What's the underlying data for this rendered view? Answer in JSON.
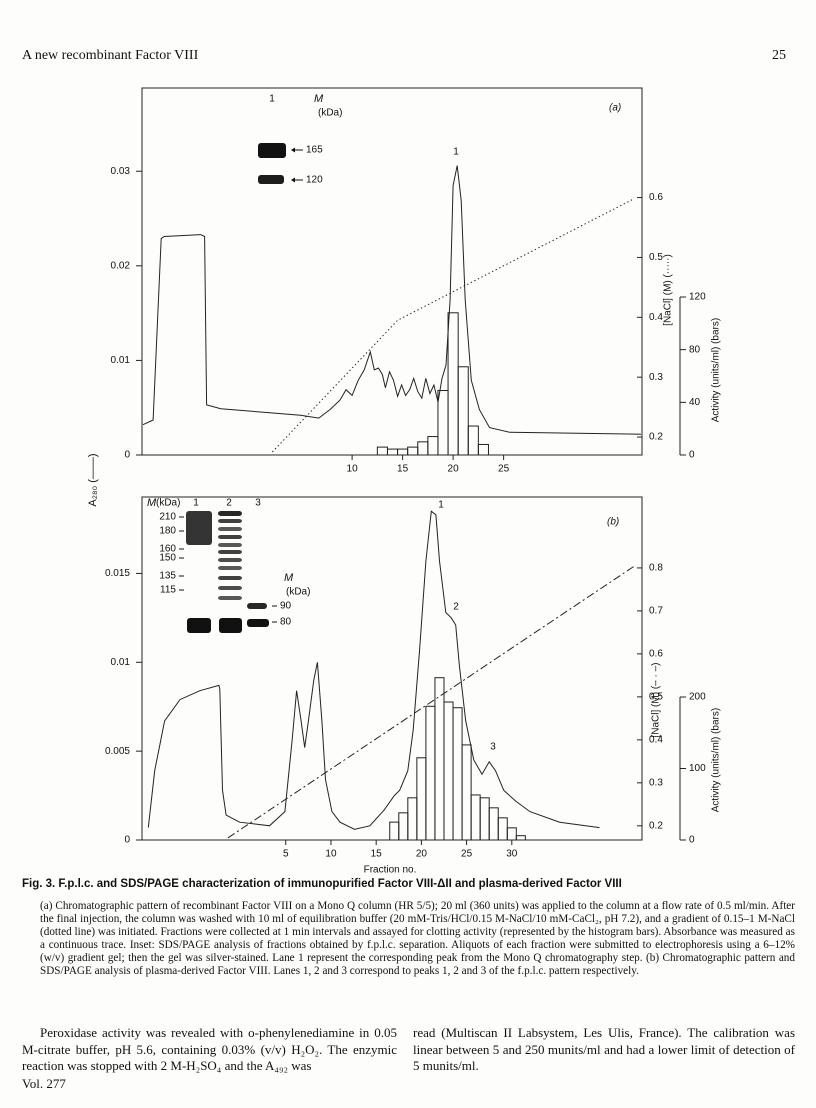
{
  "header": {
    "running_title": "A new recombinant Factor VIII",
    "page_number": "25"
  },
  "figure": {
    "y_label": "A₂₈₀ (——)"
  },
  "chart_data": [
    {
      "type": "line",
      "panel_label": "(a)",
      "xlim": [
        -10.8,
        38.7
      ],
      "xticks": [
        10,
        15,
        20,
        25
      ],
      "ylim": [
        0,
        0.0388
      ],
      "yticks": [
        0,
        0.01,
        0.02,
        0.03
      ],
      "y2lim": [
        0.17,
        0.783
      ],
      "y2ticks": [
        0.2,
        0.3,
        0.4,
        0.5,
        0.6
      ],
      "y2_label": "[NaCl] (M) (·····)",
      "y3lim": [
        0,
        120
      ],
      "y3ticks": [
        0,
        40,
        80,
        120
      ],
      "y3_label": "Activity (units/ml) (bars)",
      "series": [
        {
          "color": "#222222",
          "style": "solid",
          "x": [
            -10.7,
            -9.7,
            -8.9,
            -8.6,
            -5.0,
            -4.6,
            -4.4,
            -3.0,
            4.9,
            6.7,
            7.8,
            8.8,
            9.4,
            10,
            10.6,
            11.2,
            11.8,
            12.2,
            12.6,
            13.0,
            13.3,
            13.7,
            14.1,
            14.5,
            14.9,
            15.3,
            15.7,
            16.1,
            16.5,
            16.9,
            17.3,
            17.7,
            18.1,
            18.5,
            18.9,
            19.3,
            19.7,
            20.0,
            20.4,
            20.8,
            21.2,
            21.8,
            22.6,
            23.6,
            25.6,
            38.6
          ],
          "values": [
            0.0032,
            0.0037,
            0.0229,
            0.0231,
            0.0233,
            0.0231,
            0.0053,
            0.0049,
            0.0042,
            0.0039,
            0.0048,
            0.0058,
            0.0069,
            0.0063,
            0.0079,
            0.009,
            0.0109,
            0.009,
            0.0092,
            0.0085,
            0.0071,
            0.0088,
            0.0079,
            0.0062,
            0.0074,
            0.0063,
            0.0069,
            0.0081,
            0.0067,
            0.006,
            0.0081,
            0.0065,
            0.0074,
            0.0056,
            0.0081,
            0.0095,
            0.0164,
            0.0285,
            0.0306,
            0.0269,
            0.0164,
            0.0079,
            0.0048,
            0.0029,
            0.0024,
            0.0022
          ]
        },
        {
          "color": "#222222",
          "style": "dotted",
          "axis": "y2",
          "x": [
            2.1,
            14.5,
            37.9
          ],
          "values": [
            0.175,
            0.395,
            0.598
          ]
        },
        {
          "type": "bar",
          "color": "#222222",
          "axis": "y3",
          "x": [
            13,
            14,
            15,
            16,
            17,
            18,
            19,
            20,
            21,
            22,
            23
          ],
          "values": [
            6,
            4.5,
            4.5,
            6,
            10,
            14,
            49,
            108,
            67,
            22,
            8
          ]
        }
      ],
      "annotations": [
        "1"
      ],
      "inset": {
        "lane_labels": [
          "1"
        ],
        "mass_label": "M",
        "unit_label": "(kDa)",
        "markers": [
          "165",
          "120"
        ]
      }
    },
    {
      "type": "line",
      "panel_label": "(b)",
      "x_label": "Fraction no.",
      "xlim": [
        -10.9,
        44.4
      ],
      "xticks": [
        5,
        10,
        15,
        20,
        25,
        30
      ],
      "ylim": [
        0,
        0.0193
      ],
      "yticks": [
        0,
        0.005,
        0.01,
        0.015
      ],
      "y2lim": [
        0.167,
        0.965
      ],
      "y2ticks": [
        0.2,
        0.3,
        0.4,
        0.5,
        0.6,
        0.7,
        0.8
      ],
      "y2_label": "[NaCl] (M) (– · –)",
      "y3lim": [
        0,
        200
      ],
      "y3ticks": [
        0,
        100,
        200
      ],
      "y3_label": "Activity (units/ml) (bars)",
      "series": [
        {
          "color": "#222222",
          "style": "solid",
          "x": [
            -10.2,
            -9.5,
            -8.4,
            -6.7,
            -4.5,
            -2.4,
            -2.3,
            -2.0,
            -1.6,
            -0.1,
            3.2,
            4.9,
            5.7,
            6.2,
            6.7,
            7.1,
            7.5,
            8.1,
            8.5,
            9.0,
            9.4,
            10.1,
            11.0,
            12.6,
            14.3,
            15.9,
            17.0,
            17.6,
            18.5,
            19.1,
            19.8,
            20.5,
            21.1,
            21.6,
            22.0,
            22.7,
            23.3,
            23.8,
            24.2,
            24.9,
            25.8,
            26.7,
            27.5,
            28.2,
            29.1,
            30.4,
            32.0,
            35.3,
            39.7
          ],
          "values": [
            0.0007,
            0.0039,
            0.0067,
            0.0079,
            0.0084,
            0.0087,
            0.0085,
            0.0028,
            0.0014,
            0.001,
            0.0008,
            0.0016,
            0.0056,
            0.0084,
            0.0067,
            0.0052,
            0.0067,
            0.009,
            0.01,
            0.0067,
            0.0034,
            0.0016,
            0.001,
            0.0006,
            0.0008,
            0.0017,
            0.0025,
            0.0028,
            0.0039,
            0.0062,
            0.0107,
            0.0157,
            0.0185,
            0.0183,
            0.0157,
            0.0128,
            0.0125,
            0.0121,
            0.0098,
            0.0067,
            0.0045,
            0.0037,
            0.0044,
            0.0039,
            0.0028,
            0.0022,
            0.0016,
            0.001,
            0.0007
          ]
        },
        {
          "color": "#222222",
          "style": "dashdot",
          "axis": "y2",
          "x": [
            -1.4,
            43.6
          ],
          "values": [
            0.172,
            0.805
          ]
        },
        {
          "type": "bar",
          "color": "#222222",
          "axis": "y3",
          "x": [
            17,
            18,
            19,
            20,
            21,
            22,
            23,
            24,
            25,
            26,
            27,
            28,
            29,
            30,
            31
          ],
          "values": [
            25,
            38,
            59,
            115,
            187,
            227,
            193,
            185,
            133,
            63,
            59,
            45,
            31,
            17,
            6
          ]
        }
      ],
      "annotations": [
        "1",
        "2",
        "3"
      ],
      "inset": {
        "mass_label": "M",
        "unit_label": "(kDa)",
        "lane_labels": [
          "1",
          "2",
          "3"
        ],
        "markers": [
          "210",
          "180",
          "160",
          "150",
          "135",
          "115"
        ],
        "lane3_mass_label": "M",
        "lane3_unit_label": "(kDa)",
        "lane3_markers": [
          "90",
          "80"
        ]
      }
    }
  ],
  "caption": {
    "title": "Fig. 3. F.p.l.c. and SDS/PAGE characterization of immunopurified Factor VIII-ΔII and plasma-derived Factor VIII",
    "text": "(a) Chromatographic pattern of recombinant Factor VIII on a Mono Q column (HR 5/5); 20 ml (360 units) was applied to the column at a flow rate of 0.5 ml/min. After the final injection, the column was washed with 10 ml of equilibration buffer (20 mM-Tris/HCl/0.15 M-NaCl/10 mM-CaCl₂, pH 7.2), and a gradient of 0.15–1 M-NaCl (dotted line) was initiated. Fractions were collected at 1 min intervals and assayed for clotting activity (represented by the histogram bars). Absorbance was measured as a continuous trace. Inset: SDS/PAGE analysis of fractions obtained by f.p.l.c. separation. Aliquots of each fraction were submitted to electrophoresis using a 6–12% (w/v) gradient gel; then the gel was silver-stained. Lane 1 represent the corresponding peak from the Mono Q chromatography step. (b) Chromatographic pattern and SDS/PAGE analysis of plasma-derived Factor VIII. Lanes 1, 2 and 3 correspond to peaks 1, 2 and 3 of the f.p.l.c. pattern respectively."
  },
  "body": {
    "left": "Peroxidase activity was revealed with o-phenylenediamine in 0.05 M-citrate buffer, pH 5.6, containing 0.03% (v/v) H₂O₂. The enzymic reaction was stopped with 2 M-H₂SO₄ and the A₄₉₂ was",
    "right": "read (Multiscan II Labsystem, Les Ulis, France). The calibration was linear between 5 and 250 munits/ml and had a lower limit of detection of 5 munits/ml."
  },
  "footer": "Vol. 277"
}
